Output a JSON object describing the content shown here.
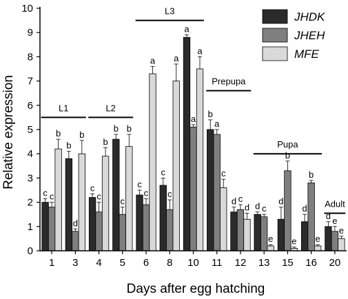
{
  "chart_data": {
    "type": "bar",
    "xlabel": "Days after egg hatching",
    "ylabel": "Relative expression",
    "ylim": [
      0,
      10
    ],
    "yticks": [
      0,
      1,
      2,
      3,
      4,
      5,
      6,
      7,
      8,
      9,
      10
    ],
    "categories": [
      "1",
      "3",
      "4",
      "5",
      "6",
      "8",
      "10",
      "11",
      "12",
      "13",
      "15",
      "16",
      "20"
    ],
    "legend_position": "top-right",
    "series": [
      {
        "name": "JHDK",
        "color": "#2b2b2b",
        "values": [
          2.0,
          3.8,
          2.2,
          4.6,
          2.3,
          2.7,
          8.8,
          5.0,
          1.6,
          1.5,
          1.3,
          1.2,
          1.0
        ],
        "errors": [
          0.15,
          0.3,
          0.15,
          0.2,
          0.2,
          0.3,
          0.1,
          0.4,
          0.2,
          0.1,
          0.5,
          0.3,
          0.2
        ],
        "labels": [
          "c",
          "b",
          "c",
          "b",
          "c",
          "c",
          "a",
          "b",
          "d",
          "d",
          "d",
          "d",
          "d"
        ]
      },
      {
        "name": "JHEH",
        "color": "#7f7f7f",
        "values": [
          1.8,
          0.8,
          1.6,
          1.5,
          1.9,
          1.7,
          5.1,
          4.8,
          1.7,
          1.4,
          3.3,
          2.8,
          0.8
        ],
        "errors": [
          0.2,
          0.1,
          0.4,
          0.3,
          0.25,
          0.4,
          0.1,
          0.2,
          0.2,
          0.1,
          0.4,
          0.1,
          0.2
        ],
        "labels": [
          "c",
          "d",
          "c",
          "c",
          "c",
          "c",
          "a",
          "a",
          "c",
          "c",
          "b",
          "b",
          "e"
        ]
      },
      {
        "name": "MFE",
        "color": "#d9d9d9",
        "values": [
          4.2,
          4.0,
          3.9,
          4.3,
          7.3,
          7.0,
          7.5,
          2.6,
          1.3,
          0.2,
          0.1,
          0.2,
          0.5
        ],
        "errors": [
          0.4,
          0.55,
          0.35,
          0.5,
          0.3,
          0.7,
          0.5,
          0.35,
          0.25,
          0.05,
          0.05,
          0.05,
          0.1
        ],
        "labels": [
          "b",
          "b",
          "b",
          "b",
          "a",
          "a",
          "a",
          "c",
          "d",
          "e",
          "e",
          "e",
          "e"
        ]
      }
    ],
    "stage_annotations": [
      {
        "label": "L1",
        "from": 0,
        "to": 1,
        "y": 5.5
      },
      {
        "label": "L2",
        "from": 2,
        "to": 3,
        "y": 5.5
      },
      {
        "label": "L3",
        "from": 4,
        "to": 6,
        "y": 9.5
      },
      {
        "label": "Prepupa",
        "from": 7,
        "to": 8,
        "y": 6.6
      },
      {
        "label": "Pupa",
        "from": 9,
        "to": 11,
        "y": 4.0
      },
      {
        "label": "Adult",
        "from": 12,
        "to": 12,
        "y": 1.55
      }
    ]
  }
}
